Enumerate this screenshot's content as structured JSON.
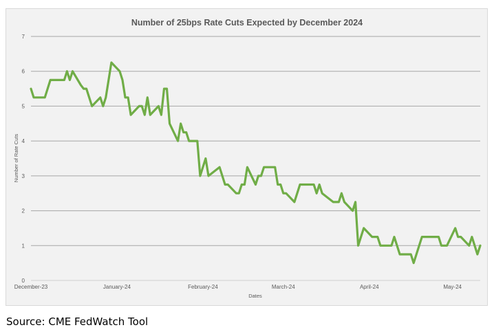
{
  "chart_data": {
    "type": "line",
    "title": "Number of 25bps Rate Cuts Expected by December 2024",
    "xlabel": "Dates",
    "ylabel": "Number of Rate Cuts",
    "ylim": [
      0,
      7
    ],
    "yticks": [
      "0",
      "1",
      "2",
      "3",
      "4",
      "5",
      "6",
      "7"
    ],
    "xlim": [
      "2023-12-01",
      "2024-05-12"
    ],
    "xticks": [
      {
        "date": "2023-12-01",
        "label": "December-23"
      },
      {
        "date": "2024-01-01",
        "label": "January-24"
      },
      {
        "date": "2024-02-01",
        "label": "February-24"
      },
      {
        "date": "2024-03-01",
        "label": "March-24"
      },
      {
        "date": "2024-04-01",
        "label": "April-24"
      },
      {
        "date": "2024-05-01",
        "label": "May-24"
      }
    ],
    "grid": true,
    "legend": "none",
    "line_color": "#70ad47",
    "series": [
      {
        "points": [
          [
            "2023-12-01",
            5.5
          ],
          [
            "2023-12-02",
            5.25
          ],
          [
            "2023-12-06",
            5.25
          ],
          [
            "2023-12-08",
            5.75
          ],
          [
            "2023-12-13",
            5.75
          ],
          [
            "2023-12-14",
            6.0
          ],
          [
            "2023-12-15",
            5.75
          ],
          [
            "2023-12-16",
            6.0
          ],
          [
            "2023-12-19",
            5.6
          ],
          [
            "2023-12-20",
            5.5
          ],
          [
            "2023-12-21",
            5.5
          ],
          [
            "2023-12-23",
            5.0
          ],
          [
            "2023-12-26",
            5.25
          ],
          [
            "2023-12-27",
            5.0
          ],
          [
            "2023-12-28",
            5.25
          ],
          [
            "2023-12-30",
            6.25
          ],
          [
            "2024-01-02",
            6.0
          ],
          [
            "2024-01-03",
            5.75
          ],
          [
            "2024-01-04",
            5.25
          ],
          [
            "2024-01-05",
            5.25
          ],
          [
            "2024-01-06",
            4.75
          ],
          [
            "2024-01-09",
            5.0
          ],
          [
            "2024-01-10",
            5.0
          ],
          [
            "2024-01-11",
            4.75
          ],
          [
            "2024-01-12",
            5.25
          ],
          [
            "2024-01-13",
            4.75
          ],
          [
            "2024-01-16",
            5.0
          ],
          [
            "2024-01-17",
            4.75
          ],
          [
            "2024-01-18",
            5.5
          ],
          [
            "2024-01-19",
            5.5
          ],
          [
            "2024-01-20",
            4.5
          ],
          [
            "2024-01-23",
            4.0
          ],
          [
            "2024-01-24",
            4.5
          ],
          [
            "2024-01-25",
            4.25
          ],
          [
            "2024-01-26",
            4.25
          ],
          [
            "2024-01-27",
            4.0
          ],
          [
            "2024-01-30",
            4.0
          ],
          [
            "2024-01-31",
            3.0
          ],
          [
            "2024-02-02",
            3.5
          ],
          [
            "2024-02-03",
            3.0
          ],
          [
            "2024-02-07",
            3.25
          ],
          [
            "2024-02-09",
            2.75
          ],
          [
            "2024-02-10",
            2.75
          ],
          [
            "2024-02-13",
            2.5
          ],
          [
            "2024-02-14",
            2.5
          ],
          [
            "2024-02-15",
            2.75
          ],
          [
            "2024-02-16",
            2.75
          ],
          [
            "2024-02-17",
            3.25
          ],
          [
            "2024-02-20",
            2.75
          ],
          [
            "2024-02-21",
            3.0
          ],
          [
            "2024-02-22",
            3.0
          ],
          [
            "2024-02-23",
            3.25
          ],
          [
            "2024-02-27",
            3.25
          ],
          [
            "2024-02-28",
            2.75
          ],
          [
            "2024-02-29",
            2.75
          ],
          [
            "2024-03-01",
            2.5
          ],
          [
            "2024-03-02",
            2.5
          ],
          [
            "2024-03-05",
            2.25
          ],
          [
            "2024-03-07",
            2.75
          ],
          [
            "2024-03-12",
            2.75
          ],
          [
            "2024-03-13",
            2.5
          ],
          [
            "2024-03-14",
            2.75
          ],
          [
            "2024-03-15",
            2.5
          ],
          [
            "2024-03-19",
            2.25
          ],
          [
            "2024-03-21",
            2.25
          ],
          [
            "2024-03-22",
            2.5
          ],
          [
            "2024-03-23",
            2.25
          ],
          [
            "2024-03-26",
            2.0
          ],
          [
            "2024-03-27",
            2.25
          ],
          [
            "2024-03-28",
            1.0
          ],
          [
            "2024-03-30",
            1.5
          ],
          [
            "2024-04-02",
            1.25
          ],
          [
            "2024-04-04",
            1.25
          ],
          [
            "2024-04-05",
            1.0
          ],
          [
            "2024-04-09",
            1.0
          ],
          [
            "2024-04-10",
            1.25
          ],
          [
            "2024-04-12",
            0.75
          ],
          [
            "2024-04-16",
            0.75
          ],
          [
            "2024-04-17",
            0.5
          ],
          [
            "2024-04-20",
            1.25
          ],
          [
            "2024-04-26",
            1.25
          ],
          [
            "2024-04-27",
            1.0
          ],
          [
            "2024-04-29",
            1.0
          ],
          [
            "2024-05-02",
            1.5
          ],
          [
            "2024-05-03",
            1.25
          ],
          [
            "2024-05-04",
            1.25
          ],
          [
            "2024-05-07",
            1.0
          ],
          [
            "2024-05-08",
            1.25
          ],
          [
            "2024-05-10",
            0.75
          ],
          [
            "2024-05-11",
            1.0
          ]
        ]
      }
    ]
  },
  "source": "Source: CME FedWatch Tool"
}
